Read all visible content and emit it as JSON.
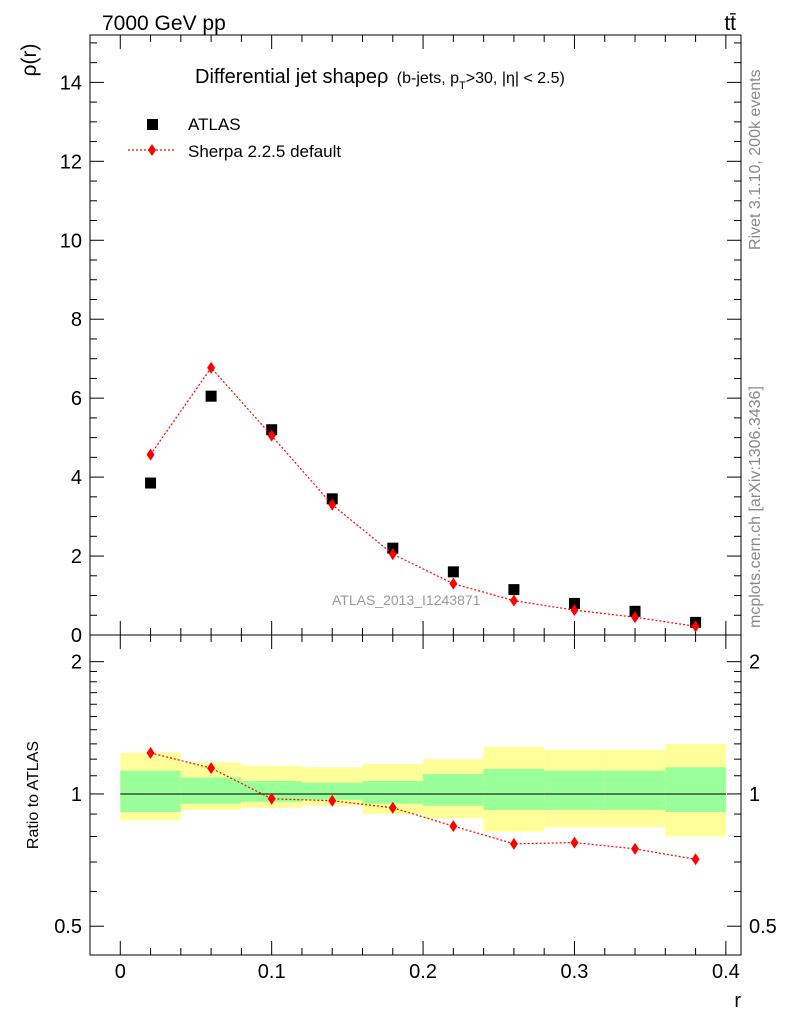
{
  "header": {
    "energy_label": "7000 GeV pp",
    "process_label": "tt̄"
  },
  "side_text": {
    "rivet": "Rivet 3.1.10,  200k events",
    "mcplots": "mcplots.cern.ch [arXiv:1306.3436]"
  },
  "chart_data": [
    {
      "type": "scatter",
      "title_main": "Differential jet shapeρ",
      "title_detail_prefix": "(b-jets, p",
      "title_detail_sub": "T",
      "title_detail_suffix": ">30, |η| < 2.5)",
      "ylabel": "ρ(r)",
      "xlabel": "",
      "ylim": [
        0,
        15.2
      ],
      "xlim": [
        -0.02,
        0.41
      ],
      "yticks": [
        0,
        2,
        4,
        6,
        8,
        10,
        12,
        14
      ],
      "ytick_labels": [
        "0",
        "2",
        "4",
        "6",
        "8",
        "10",
        "12",
        "14"
      ],
      "watermark": "ATLAS_2013_I1243871",
      "legend": {
        "placement": "top-left",
        "entries": [
          {
            "label": "ATLAS",
            "marker": "square",
            "color": "#000000"
          },
          {
            "label": "Sherpa 2.2.5 default",
            "marker": "diamond",
            "color": "#ff0000"
          }
        ]
      },
      "series": [
        {
          "name": "ATLAS",
          "color": "#000000",
          "x": [
            0.02,
            0.06,
            0.1,
            0.14,
            0.18,
            0.22,
            0.26,
            0.3,
            0.34,
            0.38
          ],
          "y": [
            3.85,
            6.05,
            5.2,
            3.45,
            2.2,
            1.6,
            1.15,
            0.8,
            0.6,
            0.32
          ]
        },
        {
          "name": "Sherpa 2.2.5 default",
          "color": "#ff0000",
          "x": [
            0.02,
            0.06,
            0.1,
            0.14,
            0.18,
            0.22,
            0.26,
            0.3,
            0.34,
            0.38
          ],
          "y": [
            4.57,
            6.77,
            5.05,
            3.3,
            2.05,
            1.3,
            0.87,
            0.63,
            0.45,
            0.22
          ]
        }
      ]
    },
    {
      "type": "scatter",
      "ylabel": "Ratio to ATLAS",
      "xlabel": "r",
      "ylim": [
        0.43,
        2.3
      ],
      "xlim": [
        -0.02,
        0.41
      ],
      "yscale": "log",
      "yticks": [
        0.5,
        1,
        2
      ],
      "ytick_labels": [
        "0.5",
        "1",
        "2"
      ],
      "xticks": [
        0,
        0.1,
        0.2,
        0.3,
        0.4
      ],
      "xtick_labels": [
        "0",
        "0.1",
        "0.2",
        "0.3",
        "0.4"
      ],
      "reference_line": 1,
      "uncertainty_bands": {
        "bin_edges": [
          0.0,
          0.04,
          0.08,
          0.12,
          0.16,
          0.2,
          0.24,
          0.28,
          0.32,
          0.36,
          0.4
        ],
        "outer_color": "#ffff99",
        "inner_color": "#99ff99",
        "outer_low": [
          0.87,
          0.92,
          0.93,
          0.94,
          0.9,
          0.88,
          0.82,
          0.84,
          0.84,
          0.8
        ],
        "outer_high": [
          1.24,
          1.18,
          1.16,
          1.15,
          1.17,
          1.2,
          1.28,
          1.26,
          1.26,
          1.3
        ],
        "inner_low": [
          0.91,
          0.95,
          0.96,
          0.97,
          0.95,
          0.94,
          0.92,
          0.92,
          0.92,
          0.91
        ],
        "inner_high": [
          1.13,
          1.09,
          1.07,
          1.06,
          1.07,
          1.11,
          1.14,
          1.13,
          1.13,
          1.15
        ]
      },
      "series": [
        {
          "name": "Sherpa 2.2.5 default",
          "color": "#ff0000",
          "x": [
            0.02,
            0.06,
            0.1,
            0.14,
            0.18,
            0.22,
            0.26,
            0.3,
            0.34,
            0.38
          ],
          "y": [
            1.24,
            1.145,
            0.975,
            0.965,
            0.93,
            0.845,
            0.77,
            0.775,
            0.75,
            0.71
          ]
        }
      ]
    }
  ]
}
